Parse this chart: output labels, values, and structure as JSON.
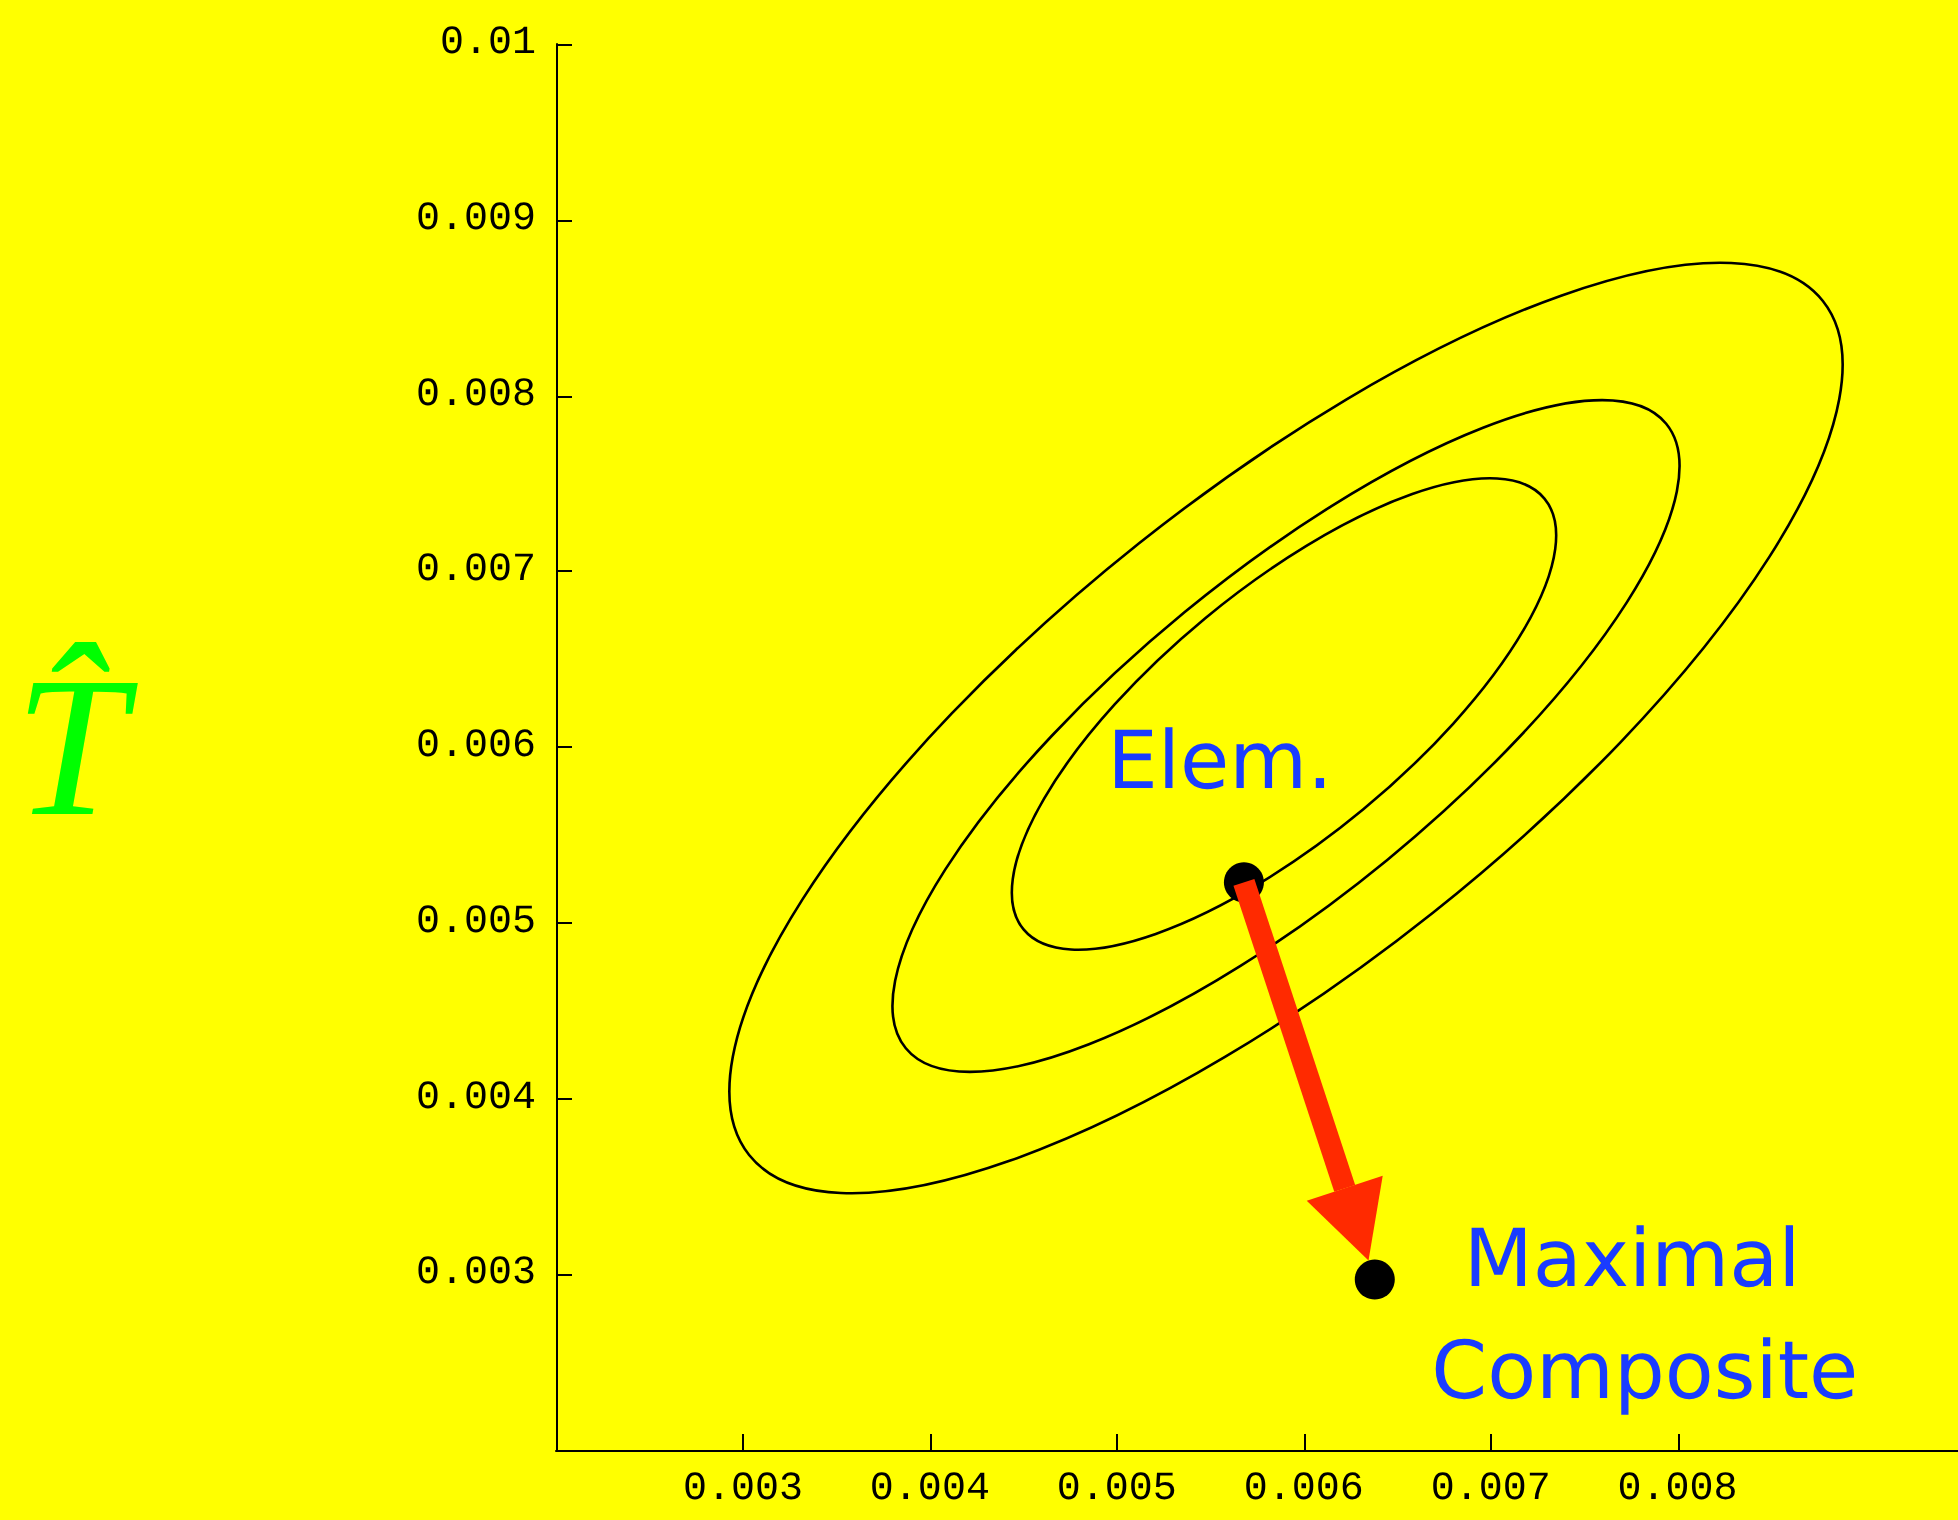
{
  "chart_data": {
    "type": "scatter",
    "ylabel": "T̂",
    "xlim": [
      0.002,
      0.0095
    ],
    "xticks": [
      0.003,
      0.004,
      0.005,
      0.006,
      0.007,
      0.008
    ],
    "ylim": [
      0.002,
      0.01
    ],
    "yticks": [
      0.003,
      0.004,
      0.005,
      0.006,
      0.007,
      0.008,
      0.009,
      0.01
    ],
    "grid": false,
    "marker": "circle",
    "series": [
      {
        "color": "#000000",
        "x": [
          0.00568,
          0.00638
        ],
        "values": [
          0.00523,
          0.00297
        ]
      }
    ],
    "annotations": [
      {
        "text": "Elem.",
        "x": 0.00568,
        "y": 0.00523
      },
      {
        "text": "Maximal Composite",
        "x": 0.00638,
        "y": 0.00297
      }
    ]
  }
}
